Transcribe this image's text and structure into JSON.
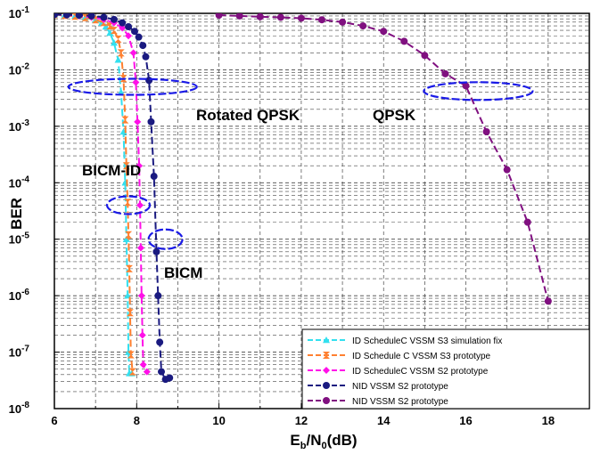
{
  "chart_data": {
    "type": "line",
    "xlabel_main": "E",
    "xlabel_sub1": "b",
    "xlabel_mid": "/N",
    "xlabel_sub2": "0",
    "xlabel_end": "(dB)",
    "ylabel": "BER",
    "xlim": [
      6,
      19
    ],
    "ylim": [
      1e-08,
      0.1
    ],
    "yscale": "log",
    "grid": true,
    "legend_position": "bottom-right",
    "x_ticks": [
      "6",
      "8",
      "10",
      "12",
      "14",
      "16",
      "18"
    ],
    "y_ticks": [
      {
        "base": "10",
        "exp": "-1"
      },
      {
        "base": "10",
        "exp": "-2"
      },
      {
        "base": "10",
        "exp": "-3"
      },
      {
        "base": "10",
        "exp": "-4"
      },
      {
        "base": "10",
        "exp": "-5"
      },
      {
        "base": "10",
        "exp": "-6"
      },
      {
        "base": "10",
        "exp": "-7"
      },
      {
        "base": "10",
        "exp": "-8"
      }
    ],
    "annotations": {
      "rotated_qpsk": "Rotated QPSK",
      "qpsk": "QPSK",
      "bicm_id": "BICM-ID",
      "bicm": "BICM"
    },
    "series": [
      {
        "name": "ID ScheduleC VSSM S3 simulation fix",
        "color": "#33e0ef",
        "marker": "triangle",
        "dash": "8 4",
        "points": [
          [
            6.0,
            0.095
          ],
          [
            6.25,
            0.093
          ],
          [
            6.5,
            0.09
          ],
          [
            6.75,
            0.085
          ],
          [
            7.0,
            0.076
          ],
          [
            7.15,
            0.068
          ],
          [
            7.25,
            0.058
          ],
          [
            7.35,
            0.045
          ],
          [
            7.45,
            0.03
          ],
          [
            7.55,
            0.015
          ],
          [
            7.62,
            0.004
          ],
          [
            7.68,
            0.0008
          ],
          [
            7.72,
            0.0001
          ],
          [
            7.75,
            1e-05
          ],
          [
            7.78,
            1e-06
          ],
          [
            7.8,
            1e-07
          ],
          [
            7.82,
            4.2e-08
          ],
          [
            7.88,
            4.2e-08
          ]
        ]
      },
      {
        "name": "ID Schedule C VSSM S3 prototype",
        "color": "#ff8030",
        "marker": "hourglass",
        "dash": "8 4",
        "points": [
          [
            6.0,
            0.095
          ],
          [
            6.25,
            0.092
          ],
          [
            6.5,
            0.089
          ],
          [
            6.75,
            0.084
          ],
          [
            7.0,
            0.077
          ],
          [
            7.2,
            0.069
          ],
          [
            7.35,
            0.06
          ],
          [
            7.45,
            0.05
          ],
          [
            7.55,
            0.035
          ],
          [
            7.62,
            0.02
          ],
          [
            7.68,
            0.007
          ],
          [
            7.72,
            0.0013
          ],
          [
            7.75,
            0.0002
          ],
          [
            7.78,
            4.5e-05
          ],
          [
            7.8,
            1.2e-05
          ],
          [
            7.82,
            3e-06
          ],
          [
            7.84,
            5e-07
          ],
          [
            7.86,
            9e-08
          ],
          [
            7.9,
            4.5e-08
          ]
        ]
      },
      {
        "name": "ID ScheduleC VSSM S2 prototype",
        "color": "#ff10e8",
        "marker": "diamond",
        "dash": "8 4",
        "points": [
          [
            6.0,
            0.095
          ],
          [
            6.3,
            0.093
          ],
          [
            6.6,
            0.09
          ],
          [
            6.9,
            0.085
          ],
          [
            7.2,
            0.078
          ],
          [
            7.45,
            0.068
          ],
          [
            7.65,
            0.055
          ],
          [
            7.8,
            0.04
          ],
          [
            7.92,
            0.02
          ],
          [
            7.98,
            0.006
          ],
          [
            8.02,
            0.0012
          ],
          [
            8.06,
            0.0002
          ],
          [
            8.08,
            4e-05
          ],
          [
            8.1,
            7e-06
          ],
          [
            8.12,
            1e-06
          ],
          [
            8.14,
            2e-07
          ],
          [
            8.16,
            6e-08
          ],
          [
            8.25,
            4.5e-08
          ]
        ]
      },
      {
        "name": "NID VSSM S2 prototype",
        "color": "#1a1a80",
        "marker": "circle",
        "dash": "8 4",
        "points": [
          [
            6.0,
            0.095
          ],
          [
            6.3,
            0.094
          ],
          [
            6.6,
            0.093
          ],
          [
            6.9,
            0.09
          ],
          [
            7.2,
            0.085
          ],
          [
            7.45,
            0.078
          ],
          [
            7.65,
            0.068
          ],
          [
            7.8,
            0.058
          ],
          [
            7.95,
            0.048
          ],
          [
            8.05,
            0.038
          ],
          [
            8.15,
            0.027
          ],
          [
            8.22,
            0.017
          ],
          [
            8.3,
            0.0065
          ],
          [
            8.35,
            0.0012
          ],
          [
            8.42,
            0.00013
          ],
          [
            8.48,
            6e-06
          ],
          [
            8.52,
            1e-06
          ],
          [
            8.56,
            1.5e-07
          ],
          [
            8.6,
            4.5e-08
          ],
          [
            8.7,
            3.3e-08
          ],
          [
            8.8,
            3.5e-08
          ]
        ]
      },
      {
        "name": "NID VSSM S2 prototype",
        "color": "#801080",
        "marker": "circle",
        "dash": "8 4",
        "points": [
          [
            10.0,
            0.093
          ],
          [
            10.5,
            0.09
          ],
          [
            11.0,
            0.087
          ],
          [
            11.5,
            0.085
          ],
          [
            12.0,
            0.082
          ],
          [
            12.5,
            0.077
          ],
          [
            13.0,
            0.07
          ],
          [
            13.5,
            0.06
          ],
          [
            14.0,
            0.048
          ],
          [
            14.5,
            0.032
          ],
          [
            15.0,
            0.018
          ],
          [
            15.5,
            0.0085
          ],
          [
            16.0,
            0.0052
          ],
          [
            16.5,
            0.0008
          ],
          [
            17.0,
            0.00017
          ],
          [
            17.5,
            2e-05
          ],
          [
            18.0,
            8e-07
          ]
        ]
      }
    ]
  },
  "ellipses": [
    {
      "name": "ellipse-rotated-qpsk",
      "cx": 7.9,
      "cy": 0.005
    },
    {
      "name": "ellipse-qpsk",
      "cx": 16.3,
      "cy": 0.0042
    },
    {
      "name": "ellipse-bicm-id",
      "cx": 7.8,
      "cy": 4e-05
    },
    {
      "name": "ellipse-bicm",
      "cx": 8.7,
      "cy": 1e-05
    }
  ]
}
